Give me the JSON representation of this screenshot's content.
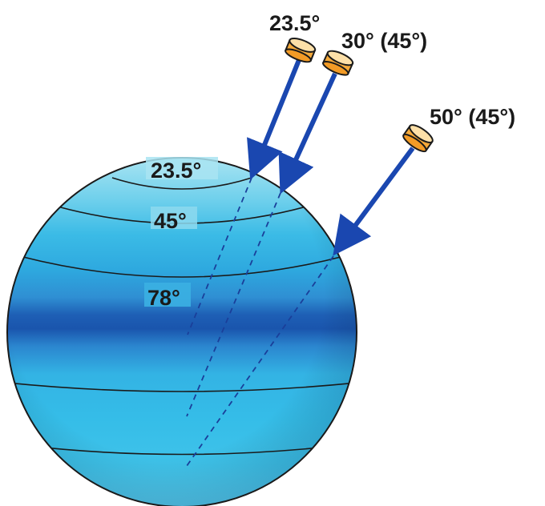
{
  "globe": {
    "latitude_labels": [
      "23.5°",
      "45°",
      "78°"
    ]
  },
  "probes": [
    {
      "label": "23.5°"
    },
    {
      "label": "30° (45°)"
    },
    {
      "label": "50° (45°)"
    }
  ],
  "colors": {
    "globe_light": "#9fe0f0",
    "globe_mid": "#33b5e0",
    "globe_band": "#1e63b6",
    "arrow": "#1a47b0",
    "probe_body": "#f4a93a",
    "probe_top": "#fde0a8",
    "outline": "#1a1a1a"
  }
}
